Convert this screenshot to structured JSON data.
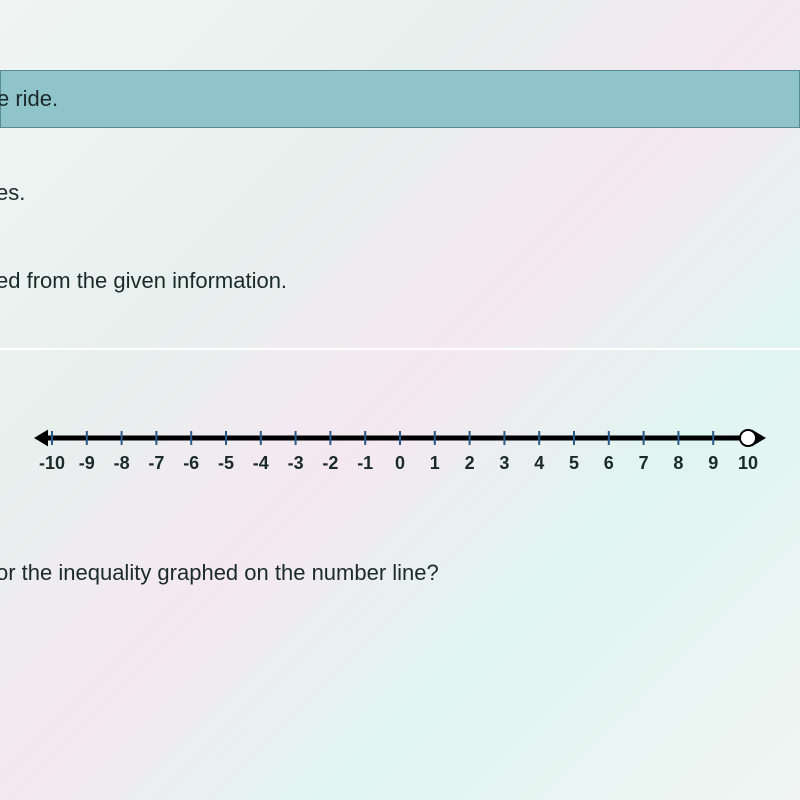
{
  "banner": {
    "text": "e ride."
  },
  "fragments": {
    "line1": "es.",
    "line2": "ed from the given information.",
    "line3": "or the inequality graphed on the number line?"
  },
  "number_line": {
    "type": "number-line",
    "min": -10,
    "max": 10,
    "tick_step": 1,
    "labels": [
      "-10",
      "-9",
      "-8",
      "-7",
      "-6",
      "-5",
      "-4",
      "-3",
      "-2",
      "-1",
      "0",
      "1",
      "2",
      "3",
      "4",
      "5",
      "6",
      "7",
      "8",
      "9",
      "10"
    ],
    "axis_color": "#000000",
    "axis_width": 3,
    "tick_color": "#2a5a8a",
    "tick_height": 14,
    "tick_width": 2,
    "label_fontsize": 18,
    "label_color": "#1a2a2a",
    "arrow_size": 12,
    "open_circle": {
      "x": 10,
      "radius": 8,
      "stroke": "#000000",
      "stroke_width": 2,
      "fill": "#ffffff"
    },
    "ray_direction": "left",
    "ray_thickness": 5
  }
}
